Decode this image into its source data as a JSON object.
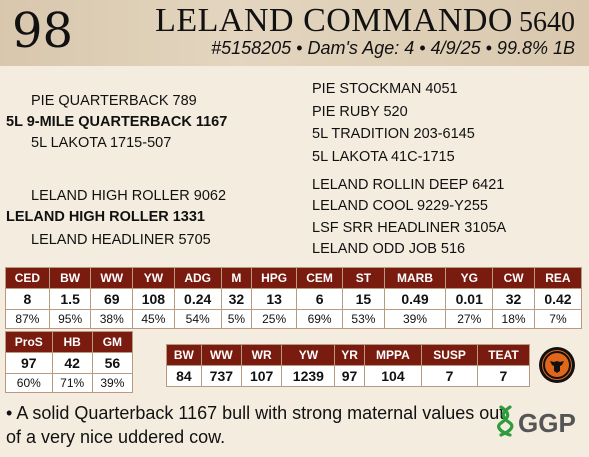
{
  "header": {
    "lot": "98",
    "name": "LELAND COMMANDO",
    "number": "5640",
    "details": "#5158205 • Dam's Age: 4 • 4/9/25 • 99.8% 1B"
  },
  "pedigree": {
    "sire_side": [
      "PIE QUARTERBACK 789",
      "5L 9-MILE QUARTERBACK 1167",
      "5L LAKOTA 1715-507"
    ],
    "sire_ancestors": [
      "PIE STOCKMAN 4051",
      "PIE RUBY 520",
      "5L TRADITION 203-6145",
      "5L LAKOTA 41C-1715"
    ],
    "dam_side": [
      "LELAND HIGH ROLLER 9062",
      "LELAND HIGH ROLLER 1331",
      "LELAND HEADLINER 5705"
    ],
    "dam_ancestors": [
      "LELAND ROLLIN DEEP 6421",
      "LELAND COOL 9229-Y255",
      "LSF SRR HEADLINER 3105A",
      "LELAND ODD JOB 516"
    ]
  },
  "epd_main": {
    "headers": [
      "CED",
      "BW",
      "WW",
      "YW",
      "ADG",
      "M",
      "HPG",
      "CEM",
      "ST",
      "MARB",
      "YG",
      "CW",
      "REA"
    ],
    "values": [
      "8",
      "1.5",
      "69",
      "108",
      "0.24",
      "32",
      "13",
      "6",
      "15",
      "0.49",
      "0.01",
      "32",
      "0.42"
    ],
    "percentiles": [
      "87%",
      "95%",
      "38%",
      "45%",
      "54%",
      "5%",
      "25%",
      "69%",
      "53%",
      "39%",
      "27%",
      "18%",
      "7%"
    ]
  },
  "epd_small": {
    "headers": [
      "ProS",
      "HB",
      "GM"
    ],
    "values": [
      "97",
      "42",
      "56"
    ],
    "percentiles": [
      "60%",
      "71%",
      "39%"
    ]
  },
  "epd_actual": {
    "headers": [
      "BW",
      "WW",
      "WR",
      "YW",
      "YR",
      "MPPA",
      "SUSP",
      "TEAT"
    ],
    "values": [
      "84",
      "737",
      "107",
      "1239",
      "97",
      "104",
      "7",
      "7"
    ]
  },
  "comment": "A solid Quarterback 1167 bull with strong maternal values out of a very nice uddered cow.",
  "logo": {
    "text": "GGP"
  },
  "colors": {
    "header_row": "#7a1b10",
    "logo_green": "#2e9b3e",
    "badge_orange": "#e0661a"
  }
}
